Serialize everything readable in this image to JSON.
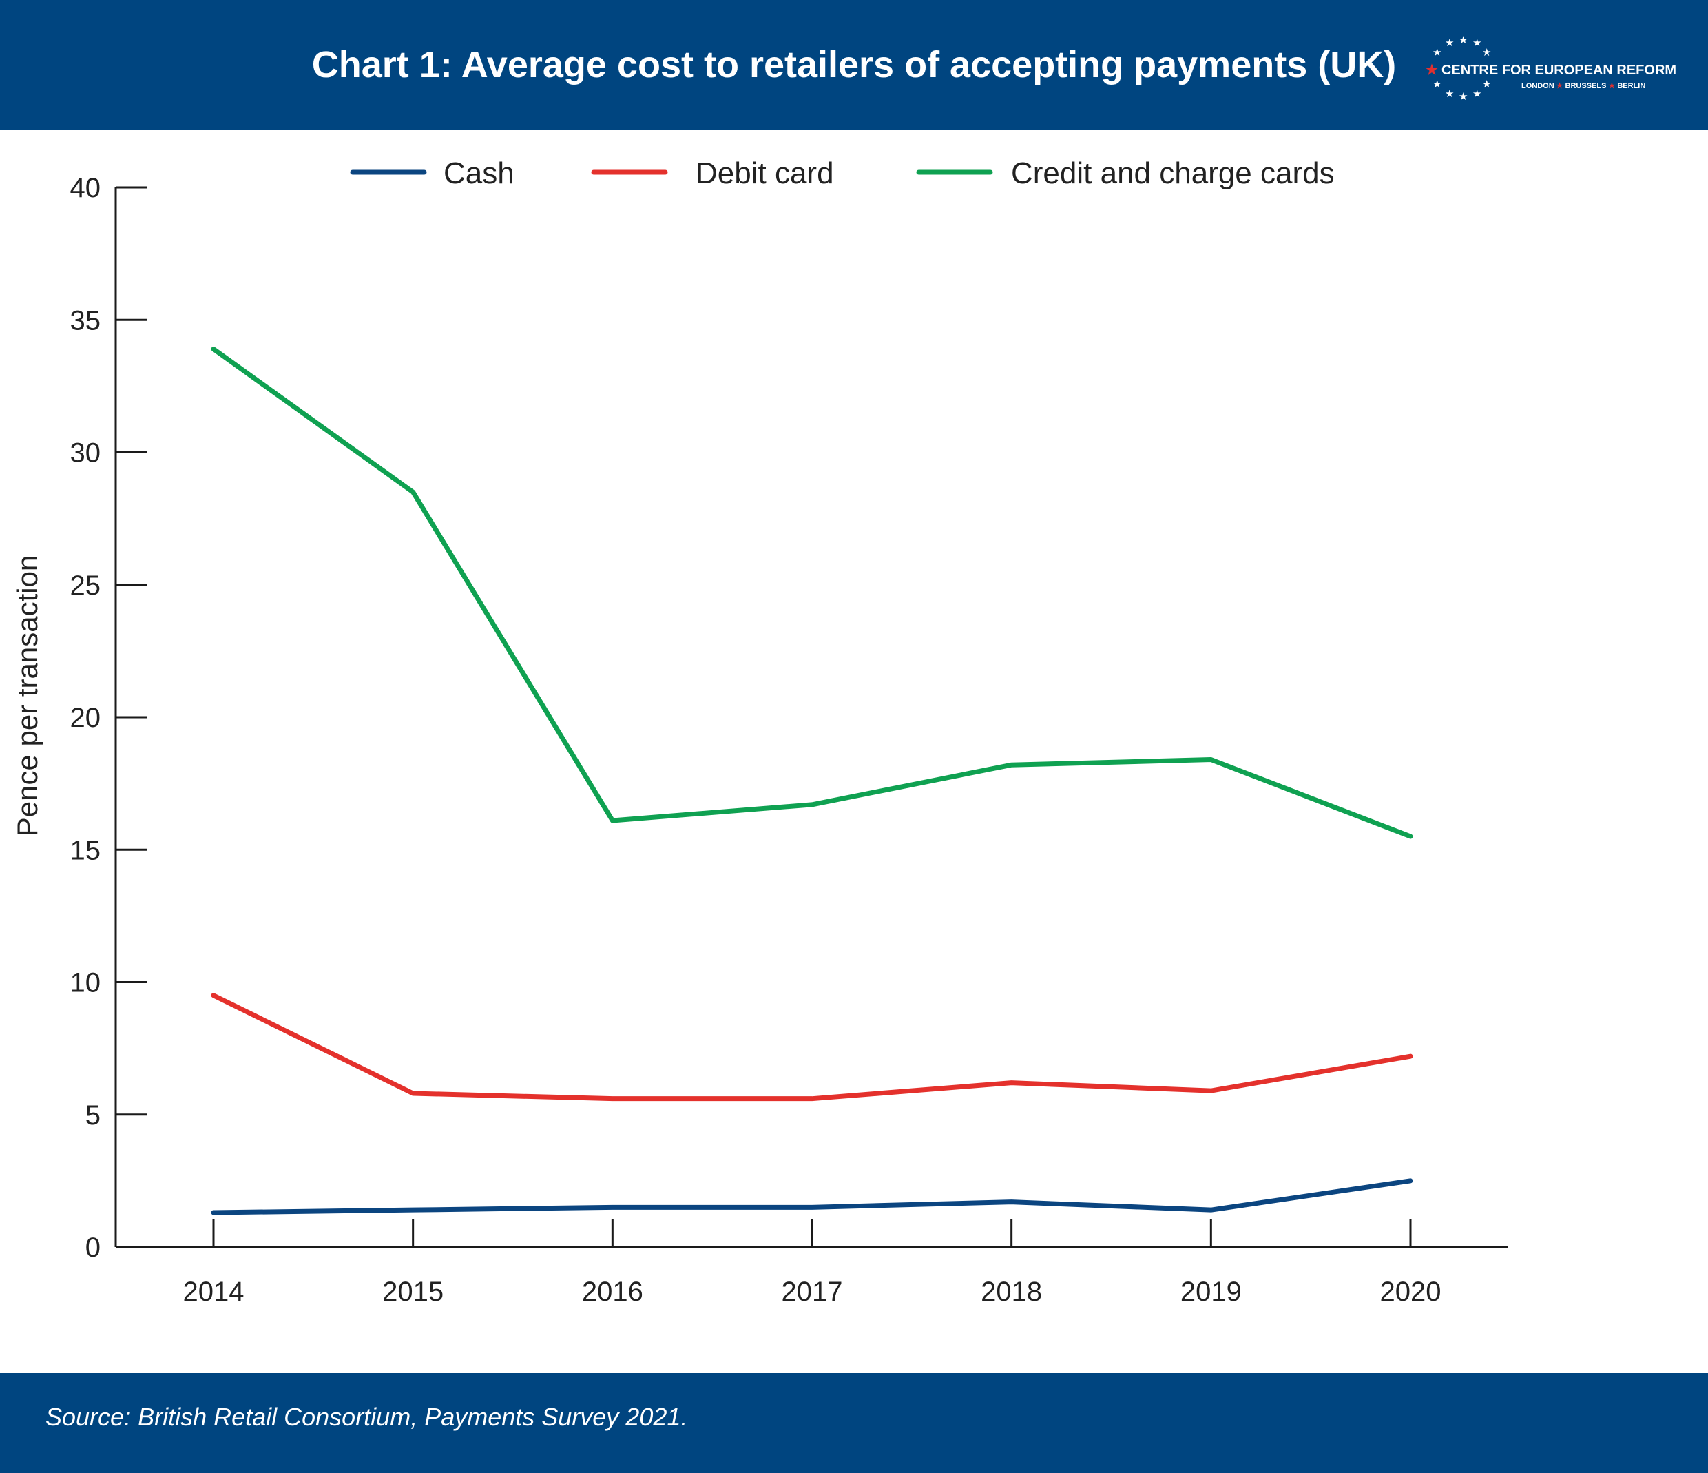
{
  "header": {
    "title": "Chart 1: Average cost to retailers of accepting payments (UK)",
    "logo_name": "CENTRE FOR EUROPEAN REFORM",
    "logo_cities": [
      "LONDON",
      "BRUSSELS",
      "BERLIN"
    ]
  },
  "footer": {
    "source": "Source: British Retail Consortium, Payments Survey 2021."
  },
  "colors": {
    "brand_navy": "#004580",
    "cash": "#0b4580",
    "debit": "#e4312c",
    "credit": "#0fa151"
  },
  "chart_data": {
    "type": "line",
    "title": "Chart 1: Average cost to retailers of accepting payments (UK)",
    "xlabel": "",
    "ylabel": "Pence per transaction",
    "categories": [
      "2014",
      "2015",
      "2016",
      "2017",
      "2018",
      "2019",
      "2020"
    ],
    "ylim": [
      0,
      40
    ],
    "yticks": [
      0,
      5,
      10,
      15,
      20,
      25,
      30,
      35,
      40
    ],
    "grid": false,
    "legend_position": "top",
    "series": [
      {
        "name": "Cash",
        "color": "#0b4580",
        "values": [
          1.3,
          1.4,
          1.5,
          1.5,
          1.7,
          1.4,
          2.5
        ]
      },
      {
        "name": "Debit card",
        "color": "#e4312c",
        "values": [
          9.5,
          5.8,
          5.6,
          5.6,
          6.2,
          5.9,
          7.2
        ]
      },
      {
        "name": "Credit and charge cards",
        "color": "#0fa151",
        "values": [
          33.9,
          28.5,
          16.1,
          16.7,
          18.2,
          18.4,
          15.5
        ]
      }
    ]
  }
}
